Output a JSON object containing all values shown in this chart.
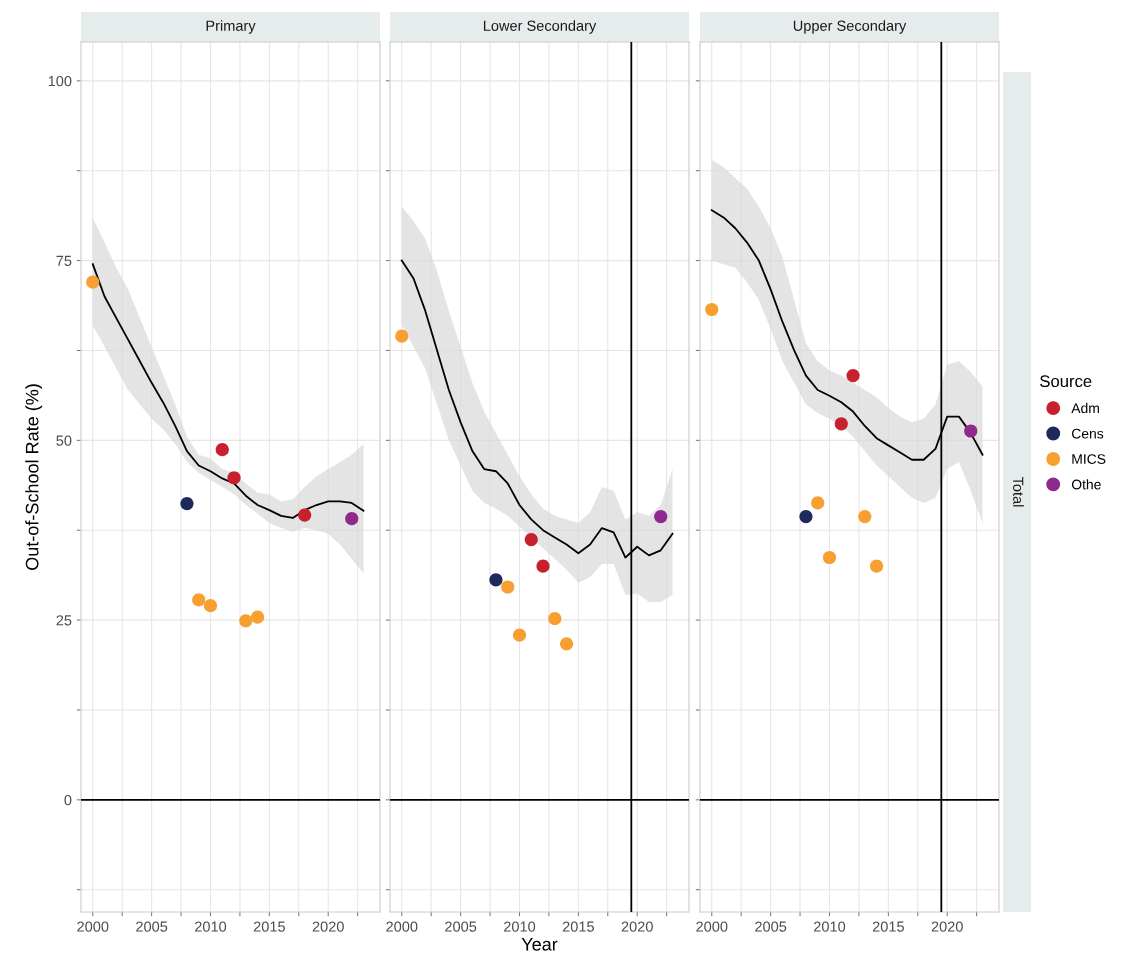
{
  "chart_data": [
    {
      "type": "scatter",
      "title": "Primary",
      "ylabel": "Out-of-School Rate (%)",
      "xlim": [
        1999,
        2024.4
      ],
      "ylim": [
        -15.6,
        105.4
      ],
      "xticks": [
        2000,
        {
          "value": 2002.5,
          "label": null
        },
        2005,
        {
          "value": 2007.5,
          "label": null
        },
        2010,
        {
          "value": 2012.5,
          "label": null
        },
        2015,
        {
          "value": 2017.5,
          "label": null
        },
        2020,
        {
          "value": 2022.5,
          "label": null
        }
      ],
      "yticks": [
        {
          "value": -12.5,
          "label": null
        },
        0,
        {
          "value": 12.5,
          "label": null
        },
        25,
        {
          "value": 37.5,
          "label": null
        },
        50,
        {
          "value": 62.5,
          "label": null
        },
        75,
        {
          "value": 87.5,
          "label": null
        },
        100
      ],
      "grid": true,
      "marker": "circle",
      "ref_lines": [
        {
          "axis": "y",
          "value": 0,
          "color": "#000000"
        }
      ],
      "series": [
        {
          "type": "line",
          "marker": "none",
          "color": "#000000",
          "x": [
            2000,
            2001,
            2002,
            2003,
            2004,
            2005,
            2006,
            2007,
            2008,
            2009,
            2010,
            2011,
            2012,
            2013,
            2014,
            2015,
            2016,
            2017,
            2018,
            2019,
            2020,
            2021,
            2022,
            2023
          ],
          "values": [
            74.5,
            70,
            67,
            64,
            61,
            58,
            55.2,
            52,
            48.5,
            46.5,
            45.7,
            44.7,
            44,
            42.3,
            41,
            40.3,
            39.5,
            39.2,
            40.3,
            41,
            41.5,
            41.5,
            41.3,
            40.2
          ],
          "lower": [
            66,
            63,
            60,
            57,
            55,
            53,
            51.5,
            49.5,
            47,
            45.5,
            44.5,
            43.5,
            42.5,
            41,
            39.8,
            38.5,
            37.8,
            37.3,
            37.8,
            37.5,
            37,
            35.5,
            33.5,
            31.5
          ],
          "upper": [
            81,
            77.5,
            74,
            71,
            67,
            63,
            59,
            55,
            50.5,
            48,
            47.5,
            46,
            45.5,
            44,
            42.7,
            42.5,
            41.5,
            41.8,
            43.5,
            45,
            46,
            47,
            48,
            49.5
          ]
        },
        {
          "color": "#c8202f",
          "x": [
            2011,
            2012,
            2018
          ],
          "values": [
            48.7,
            44.8,
            39.6
          ]
        },
        {
          "color": "#1f2a5c",
          "x": [
            2008
          ],
          "values": [
            41.2
          ]
        },
        {
          "color": "#f7a031",
          "x": [
            2000,
            2009,
            2010,
            2013,
            2014
          ],
          "values": [
            72.0,
            27.8,
            27.0,
            24.9,
            25.4
          ]
        },
        {
          "color": "#8e2a8e",
          "x": [
            2022
          ],
          "values": [
            39.1
          ]
        }
      ]
    },
    {
      "type": "scatter",
      "title": "Lower Secondary",
      "xlabel": "Year",
      "xlim": [
        1999,
        2024.4
      ],
      "ylim": [
        -15.6,
        105.4
      ],
      "tick_labels": "x",
      "xticks": [
        2000,
        {
          "value": 2002.5,
          "label": null
        },
        2005,
        {
          "value": 2007.5,
          "label": null
        },
        2010,
        {
          "value": 2012.5,
          "label": null
        },
        2015,
        {
          "value": 2017.5,
          "label": null
        },
        2020,
        {
          "value": 2022.5,
          "label": null
        }
      ],
      "yticks": [
        {
          "value": -12.5,
          "label": null
        },
        0,
        {
          "value": 12.5,
          "label": null
        },
        25,
        {
          "value": 37.5,
          "label": null
        },
        50,
        {
          "value": 62.5,
          "label": null
        },
        75,
        {
          "value": 87.5,
          "label": null
        },
        100
      ],
      "grid": true,
      "marker": "circle",
      "ref_lines": [
        {
          "axis": "y",
          "value": 0,
          "color": "#000000"
        },
        {
          "axis": "x",
          "value": 2019.5,
          "color": "#000000"
        }
      ],
      "series": [
        {
          "type": "line",
          "marker": "none",
          "color": "#000000",
          "x": [
            2000,
            2001,
            2002,
            2003,
            2004,
            2005,
            2006,
            2007,
            2008,
            2009,
            2010,
            2011,
            2012,
            2013,
            2014,
            2015,
            2016,
            2017,
            2018,
            2019,
            2020,
            2021,
            2022,
            2023
          ],
          "values": [
            75,
            72.5,
            68,
            62.5,
            57,
            52.5,
            48.5,
            46,
            45.7,
            44,
            41,
            39,
            37.5,
            36.5,
            35.5,
            34.3,
            35.5,
            37.8,
            37.2,
            33.7,
            35.2,
            34,
            34.7,
            37
          ],
          "lower": [
            66,
            63,
            60,
            55,
            50,
            46.5,
            43,
            41.3,
            40.5,
            39.5,
            38,
            36.5,
            35,
            33.5,
            32,
            30.2,
            31,
            32.8,
            32.8,
            28.5,
            28.7,
            27.5,
            27.5,
            28.5
          ],
          "upper": [
            82.5,
            80.5,
            78,
            73.5,
            68,
            63,
            58,
            54,
            51,
            48,
            45,
            42.5,
            40.5,
            39.5,
            39,
            38.5,
            40,
            43.5,
            43,
            39,
            40,
            39.5,
            41,
            46
          ]
        },
        {
          "color": "#c8202f",
          "x": [
            2011,
            2012
          ],
          "values": [
            36.2,
            32.5
          ]
        },
        {
          "color": "#1f2a5c",
          "x": [
            2008
          ],
          "values": [
            30.6
          ]
        },
        {
          "color": "#f7a031",
          "x": [
            2000,
            2009,
            2010,
            2013,
            2014
          ],
          "values": [
            64.5,
            29.6,
            22.9,
            25.2,
            21.7
          ]
        },
        {
          "color": "#8e2a8e",
          "x": [
            2022
          ],
          "values": [
            39.4
          ]
        }
      ]
    },
    {
      "type": "scatter",
      "title": "Upper Secondary",
      "legend_title": "Source",
      "annotations": [
        "Total"
      ],
      "xlim": [
        1999,
        2024.4
      ],
      "ylim": [
        -15.6,
        105.4
      ],
      "tick_labels": "x",
      "xticks": [
        2000,
        {
          "value": 2002.5,
          "label": null
        },
        2005,
        {
          "value": 2007.5,
          "label": null
        },
        2010,
        {
          "value": 2012.5,
          "label": null
        },
        2015,
        {
          "value": 2017.5,
          "label": null
        },
        2020,
        {
          "value": 2022.5,
          "label": null
        }
      ],
      "yticks": [
        {
          "value": -12.5,
          "label": null
        },
        0,
        {
          "value": 12.5,
          "label": null
        },
        25,
        {
          "value": 37.5,
          "label": null
        },
        50,
        {
          "value": 62.5,
          "label": null
        },
        75,
        {
          "value": 87.5,
          "label": null
        },
        100
      ],
      "grid": true,
      "legend": "right",
      "marker": "circle",
      "ref_lines": [
        {
          "axis": "y",
          "value": 0,
          "color": "#000000"
        },
        {
          "axis": "x",
          "value": 2019.5,
          "color": "#000000"
        }
      ],
      "series": [
        {
          "type": "line",
          "marker": "none",
          "color": "#000000",
          "x": [
            2000,
            2001,
            2002,
            2003,
            2004,
            2005,
            2006,
            2007,
            2008,
            2009,
            2010,
            2011,
            2012,
            2013,
            2014,
            2015,
            2016,
            2017,
            2018,
            2019,
            2020,
            2021,
            2022,
            2023
          ],
          "values": [
            82,
            81,
            79.5,
            77.5,
            75,
            71,
            66.5,
            62.5,
            59,
            57,
            56.2,
            55.3,
            54,
            52,
            50.3,
            49.3,
            48.3,
            47.3,
            47.3,
            48.8,
            53.3,
            53.3,
            51,
            48
          ],
          "lower": [
            75,
            74.5,
            74,
            72,
            69.5,
            65.5,
            61,
            58,
            55,
            53.8,
            53,
            52,
            50.5,
            48.5,
            46.5,
            45,
            43.5,
            42,
            41.3,
            42,
            46,
            47,
            43,
            38.5
          ],
          "upper": [
            89,
            88,
            86.5,
            85,
            82.5,
            79.5,
            75.5,
            69.5,
            63.5,
            61,
            59.7,
            59,
            58,
            57,
            56,
            54.5,
            53.3,
            52.5,
            53,
            55,
            60.5,
            61,
            59.5,
            57.5
          ]
        },
        {
          "name": "Adm",
          "color": "#c8202f",
          "x": [
            2011,
            2012
          ],
          "values": [
            52.3,
            59.0
          ]
        },
        {
          "name": "Cens",
          "color": "#1f2a5c",
          "x": [
            2008
          ],
          "values": [
            39.4
          ]
        },
        {
          "name": "MICS",
          "color": "#f7a031",
          "x": [
            2000,
            2009,
            2010,
            2013,
            2014
          ],
          "values": [
            68.2,
            41.3,
            33.7,
            39.4,
            32.5
          ]
        },
        {
          "name": "Othe",
          "color": "#8e2a8e",
          "x": [
            2022
          ],
          "values": [
            51.3
          ]
        }
      ]
    }
  ]
}
